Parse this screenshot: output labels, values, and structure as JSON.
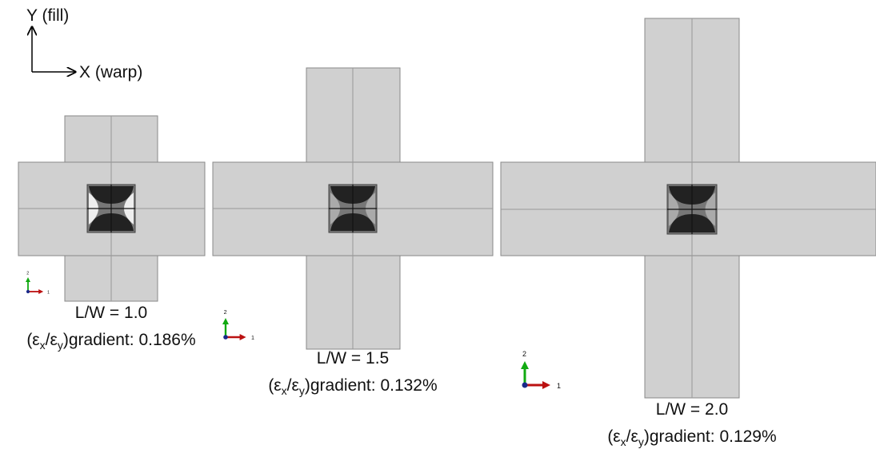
{
  "axes_legend": {
    "y_label": "Y (fill)",
    "x_label": "X (warp)"
  },
  "panels": [
    {
      "ratio_label": "L/W = 1.0",
      "gradient": {
        "open": "(ε",
        "sub_x": "x",
        "slash": "/ε",
        "sub_y": "y",
        "close": ")gradient: ",
        "value": "0.186%"
      },
      "triad": {
        "axis2": "2",
        "axis1": "1"
      }
    },
    {
      "ratio_label": "L/W = 1.5",
      "gradient": {
        "open": "(ε",
        "sub_x": "x",
        "slash": "/ε",
        "sub_y": "y",
        "close": ")gradient: ",
        "value": "0.132%"
      },
      "triad": {
        "axis2": "2",
        "axis1": "1"
      }
    },
    {
      "ratio_label": "L/W = 2.0",
      "gradient": {
        "open": "(ε",
        "sub_x": "x",
        "slash": "/ε",
        "sub_y": "y",
        "close": ")gradient: ",
        "value": "0.129%"
      },
      "triad": {
        "axis2": "2",
        "axis1": "1"
      }
    }
  ]
}
